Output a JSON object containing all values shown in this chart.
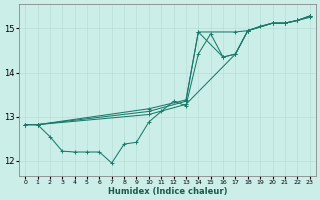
{
  "xlabel": "Humidex (Indice chaleur)",
  "xlim": [
    -0.5,
    23.5
  ],
  "ylim": [
    11.65,
    15.55
  ],
  "yticks": [
    12,
    13,
    14,
    15
  ],
  "xticks": [
    0,
    1,
    2,
    3,
    4,
    5,
    6,
    7,
    8,
    9,
    10,
    11,
    12,
    13,
    14,
    15,
    16,
    17,
    18,
    19,
    20,
    21,
    22,
    23
  ],
  "bg_color": "#cceee8",
  "line_color": "#1a7a6a",
  "grid_color": "#b8ddd8",
  "lines": [
    {
      "x": [
        0,
        1,
        2,
        3,
        4,
        5,
        6,
        7,
        8,
        9,
        10,
        11,
        12,
        13,
        14,
        15,
        16,
        17,
        18,
        19,
        20,
        21,
        22,
        23
      ],
      "y": [
        12.82,
        12.82,
        12.55,
        12.22,
        12.2,
        12.2,
        12.2,
        11.95,
        12.38,
        12.42,
        12.88,
        13.12,
        13.35,
        13.25,
        14.42,
        14.88,
        14.35,
        14.42,
        14.95,
        15.05,
        15.12,
        15.12,
        15.18,
        15.25
      ]
    },
    {
      "x": [
        0,
        1,
        10,
        13,
        17,
        18,
        20,
        21,
        22,
        23
      ],
      "y": [
        12.82,
        12.82,
        13.05,
        13.28,
        14.42,
        14.95,
        15.12,
        15.12,
        15.18,
        15.28
      ]
    },
    {
      "x": [
        0,
        1,
        10,
        13,
        14,
        16,
        17,
        18,
        20,
        21,
        22,
        23
      ],
      "y": [
        12.82,
        12.82,
        13.18,
        13.38,
        14.92,
        14.35,
        14.42,
        14.95,
        15.12,
        15.12,
        15.18,
        15.28
      ]
    },
    {
      "x": [
        0,
        1,
        10,
        13,
        14,
        17,
        18,
        20,
        21,
        22,
        23
      ],
      "y": [
        12.82,
        12.82,
        13.12,
        13.35,
        14.92,
        14.92,
        14.95,
        15.12,
        15.12,
        15.18,
        15.28
      ]
    }
  ]
}
